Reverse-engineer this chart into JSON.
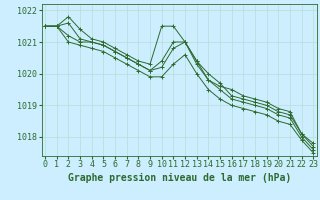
{
  "title": "Graphe pression niveau de la mer (hPa)",
  "bg_color": "#cceeff",
  "grid_color": "#b8ddd8",
  "line_color": "#2d6a2d",
  "x_labels": [
    "0",
    "1",
    "2",
    "3",
    "4",
    "5",
    "6",
    "7",
    "8",
    "9",
    "10",
    "11",
    "12",
    "13",
    "14",
    "15",
    "16",
    "17",
    "18",
    "19",
    "20",
    "21",
    "22",
    "23"
  ],
  "series": [
    [
      1021.5,
      1021.5,
      1021.8,
      1021.4,
      1021.1,
      1021.0,
      1020.8,
      1020.6,
      1020.4,
      1020.3,
      1021.5,
      1021.5,
      1021.0,
      1020.4,
      1019.8,
      1019.6,
      1019.5,
      1019.3,
      1019.2,
      1019.1,
      1018.9,
      1018.8,
      1018.1,
      1017.7
    ],
    [
      1021.5,
      1021.5,
      1021.6,
      1021.1,
      1021.0,
      1020.9,
      1020.7,
      1020.5,
      1020.3,
      1020.1,
      1020.4,
      1021.0,
      1021.0,
      1020.4,
      1020.0,
      1019.7,
      1019.3,
      1019.2,
      1019.1,
      1019.0,
      1018.8,
      1018.7,
      1018.1,
      1017.8
    ],
    [
      1021.5,
      1021.5,
      1021.2,
      1021.0,
      1021.0,
      1020.9,
      1020.7,
      1020.5,
      1020.3,
      1020.1,
      1020.2,
      1020.8,
      1021.0,
      1020.3,
      1019.8,
      1019.5,
      1019.2,
      1019.1,
      1019.0,
      1018.9,
      1018.7,
      1018.6,
      1018.0,
      1017.6
    ],
    [
      1021.5,
      1021.5,
      1021.0,
      1020.9,
      1020.8,
      1020.7,
      1020.5,
      1020.3,
      1020.1,
      1019.9,
      1019.9,
      1020.3,
      1020.6,
      1020.0,
      1019.5,
      1019.2,
      1019.0,
      1018.9,
      1018.8,
      1018.7,
      1018.5,
      1018.4,
      1017.9,
      1017.5
    ]
  ],
  "ylim": [
    1017.4,
    1022.2
  ],
  "yticks": [
    1018,
    1019,
    1020,
    1021,
    1022
  ],
  "tick_fontsize": 6.0,
  "title_fontsize": 7.0
}
